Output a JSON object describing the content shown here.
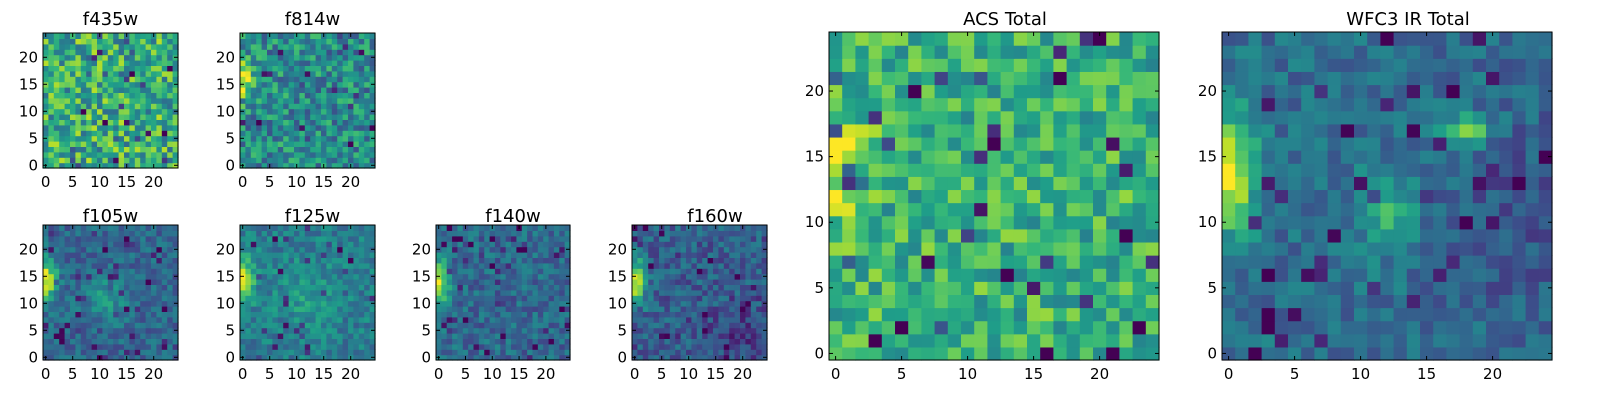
{
  "figure": {
    "panels": [
      {
        "title": "f435w"
      },
      {
        "title": "f814w"
      },
      {
        "title": "f105w"
      },
      {
        "title": "f125w"
      },
      {
        "title": "f140w"
      },
      {
        "title": "f160w"
      },
      {
        "title": "ACS Total"
      },
      {
        "title": "WFC3 IR Total"
      }
    ]
  },
  "chart_data": [
    {
      "type": "heatmap",
      "title": "f435w",
      "grid_size": [
        25,
        25
      ],
      "xlim": [
        0,
        24
      ],
      "ylim": [
        0,
        24
      ],
      "xticks": [
        0,
        5,
        10,
        15,
        20
      ],
      "yticks": [
        0,
        5,
        10,
        15,
        20
      ],
      "colormap": "viridis",
      "pattern": "uniform high noise",
      "grid": false
    },
    {
      "type": "heatmap",
      "title": "f814w",
      "grid_size": [
        25,
        25
      ],
      "xlim": [
        0,
        24
      ],
      "ylim": [
        0,
        24
      ],
      "xticks": [
        0,
        5,
        10,
        15,
        20
      ],
      "yticks": [
        0,
        5,
        10,
        15,
        20
      ],
      "colormap": "viridis",
      "pattern": "noise with bright left-edge source near y=16",
      "grid": false
    },
    {
      "type": "heatmap",
      "title": "f105w",
      "grid_size": [
        25,
        25
      ],
      "xlim": [
        0,
        24
      ],
      "ylim": [
        0,
        24
      ],
      "xticks": [
        0,
        5,
        10,
        15,
        20
      ],
      "yticks": [
        0,
        5,
        10,
        15,
        20
      ],
      "colormap": "viridis",
      "pattern": "bright source at left edge y=12-17, faint blob at center",
      "grid": false
    },
    {
      "type": "heatmap",
      "title": "f125w",
      "grid_size": [
        25,
        25
      ],
      "xlim": [
        0,
        24
      ],
      "ylim": [
        0,
        24
      ],
      "xticks": [
        0,
        5,
        10,
        15,
        20
      ],
      "yticks": [
        0,
        5,
        10,
        15,
        20
      ],
      "colormap": "viridis",
      "pattern": "bright source at left edge y=12-17",
      "grid": false
    },
    {
      "type": "heatmap",
      "title": "f140w",
      "grid_size": [
        25,
        25
      ],
      "xlim": [
        0,
        24
      ],
      "ylim": [
        0,
        24
      ],
      "xticks": [
        0,
        5,
        10,
        15,
        20
      ],
      "yticks": [
        0,
        5,
        10,
        15,
        20
      ],
      "colormap": "viridis",
      "pattern": "bright source at left edge y=11-17",
      "grid": false
    },
    {
      "type": "heatmap",
      "title": "f160w",
      "grid_size": [
        25,
        25
      ],
      "xlim": [
        0,
        24
      ],
      "ylim": [
        0,
        24
      ],
      "xticks": [
        0,
        5,
        10,
        15,
        20
      ],
      "yticks": [
        0,
        5,
        10,
        15,
        20
      ],
      "colormap": "viridis",
      "pattern": "bright source at left edge y=11-17, dark lower right",
      "grid": false
    },
    {
      "type": "heatmap",
      "title": "ACS Total",
      "grid_size": [
        25,
        25
      ],
      "xlim": [
        0,
        24
      ],
      "ylim": [
        0,
        24
      ],
      "xticks": [
        0,
        5,
        10,
        15,
        20
      ],
      "yticks": [
        0,
        5,
        10,
        15,
        20
      ],
      "colormap": "viridis",
      "pattern": "mostly high values, bright left edge y=12-17",
      "grid": false
    },
    {
      "type": "heatmap",
      "title": "WFC3 IR Total",
      "grid_size": [
        25,
        25
      ],
      "xlim": [
        0,
        24
      ],
      "ylim": [
        0,
        24
      ],
      "xticks": [
        0,
        5,
        10,
        15,
        20
      ],
      "yticks": [
        0,
        5,
        10,
        15,
        20
      ],
      "colormap": "viridis",
      "pattern": "bright left-edge source y=11-17, blobs at (18,17) and (12,11), dark right side",
      "grid": false
    }
  ]
}
